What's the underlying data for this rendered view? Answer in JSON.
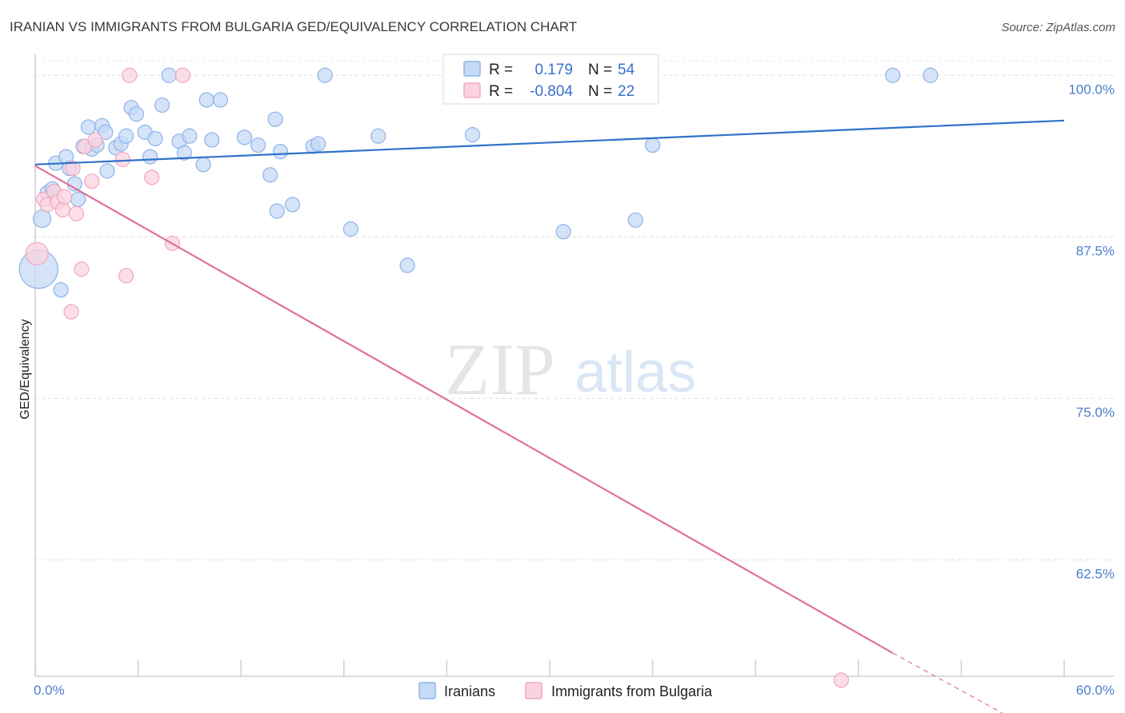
{
  "chart_data": {
    "type": "scatter",
    "title": "IRANIAN VS IMMIGRANTS FROM BULGARIA GED/EQUIVALENCY CORRELATION CHART",
    "source": "Source: ZipAtlas.com",
    "ylabel": "GED/Equivalency",
    "xlabel": "",
    "xlim": [
      0,
      60
    ],
    "ylim": [
      53.5,
      101.5
    ],
    "x_tick_labels": [
      {
        "value": 0,
        "label": "0.0%"
      },
      {
        "value": 60,
        "label": "60.0%"
      }
    ],
    "y_tick_labels": [
      {
        "value": 100,
        "label": "100.0%"
      },
      {
        "value": 87.5,
        "label": "87.5%"
      },
      {
        "value": 75,
        "label": "75.0%"
      },
      {
        "value": 62.5,
        "label": "62.5%"
      }
    ],
    "grid": true,
    "watermark": {
      "part1": "ZIP",
      "part2": "atlas"
    },
    "legend": {
      "position": "top-center",
      "rows": [
        {
          "r_label": "R =",
          "r_value": "0.179",
          "n_label": "N =",
          "n_value": "54"
        },
        {
          "r_label": "R =",
          "r_value": "-0.804",
          "n_label": "N =",
          "n_value": "22"
        }
      ]
    },
    "series": [
      {
        "name": "Iranians",
        "color": "#8db4e8",
        "fill": "#c5daf5",
        "line_color": "#2f72c8",
        "trend": {
          "x0": 0,
          "y0": 93.1,
          "x1": 60,
          "y1": 96.5
        },
        "points": [
          [
            0.2,
            85.0,
            24
          ],
          [
            0.4,
            88.9,
            11
          ],
          [
            0.7,
            90.9,
            9
          ],
          [
            1.0,
            91.2,
            9
          ],
          [
            1.2,
            93.2,
            9
          ],
          [
            1.5,
            83.4,
            9
          ],
          [
            1.8,
            93.7,
            9
          ],
          [
            2.0,
            92.8,
            9
          ],
          [
            2.3,
            91.6,
            9
          ],
          [
            2.5,
            90.4,
            9
          ],
          [
            2.8,
            94.5,
            9
          ],
          [
            3.1,
            96.0,
            9
          ],
          [
            3.3,
            94.3,
            9
          ],
          [
            3.6,
            94.6,
            9
          ],
          [
            3.9,
            96.1,
            9
          ],
          [
            4.2,
            92.6,
            9
          ],
          [
            4.1,
            95.6,
            9
          ],
          [
            4.7,
            94.4,
            9
          ],
          [
            5.0,
            94.7,
            9
          ],
          [
            5.3,
            95.3,
            9
          ],
          [
            5.6,
            97.5,
            9
          ],
          [
            5.9,
            97.0,
            9
          ],
          [
            6.4,
            95.6,
            9
          ],
          [
            6.7,
            93.7,
            9
          ],
          [
            7.0,
            95.1,
            9
          ],
          [
            7.4,
            97.7,
            9
          ],
          [
            7.8,
            100.0,
            9
          ],
          [
            8.4,
            94.9,
            9
          ],
          [
            8.7,
            94.0,
            9
          ],
          [
            9.0,
            95.3,
            9
          ],
          [
            9.8,
            93.1,
            9
          ],
          [
            10.0,
            98.1,
            9
          ],
          [
            10.3,
            95.0,
            9
          ],
          [
            10.8,
            98.1,
            9
          ],
          [
            12.2,
            95.2,
            9
          ],
          [
            13.0,
            94.6,
            9
          ],
          [
            13.7,
            92.3,
            9
          ],
          [
            14.0,
            96.6,
            9
          ],
          [
            14.1,
            89.5,
            9
          ],
          [
            14.3,
            94.1,
            9
          ],
          [
            15.0,
            90.0,
            9
          ],
          [
            16.2,
            94.5,
            9
          ],
          [
            16.5,
            94.7,
            9
          ],
          [
            16.9,
            100.0,
            9
          ],
          [
            18.4,
            88.1,
            9
          ],
          [
            20.0,
            95.3,
            9
          ],
          [
            21.7,
            85.3,
            9
          ],
          [
            25.5,
            95.4,
            9
          ],
          [
            30.8,
            87.9,
            9
          ],
          [
            35.0,
            88.8,
            9
          ],
          [
            36.0,
            94.6,
            9
          ],
          [
            50.0,
            100.0,
            9
          ],
          [
            52.2,
            100.0,
            9
          ]
        ]
      },
      {
        "name": "Immigrants from Bulgaria",
        "color": "#f0a7bf",
        "fill": "#fbd3e0",
        "line_color": "#e0709a",
        "trend": {
          "x0": 0,
          "y0": 93.0,
          "x1": 50,
          "y1": 55.3,
          "dash_to_x": 56.6,
          "dash_to_y": 50.5
        },
        "points": [
          [
            0.1,
            86.2,
            14
          ],
          [
            0.5,
            90.4,
            9
          ],
          [
            0.7,
            90.0,
            9
          ],
          [
            1.1,
            91.0,
            9
          ],
          [
            1.3,
            90.2,
            9
          ],
          [
            1.6,
            89.6,
            9
          ],
          [
            1.7,
            90.6,
            9
          ],
          [
            2.2,
            92.8,
            9
          ],
          [
            2.4,
            89.3,
            9
          ],
          [
            2.7,
            85.0,
            9
          ],
          [
            2.9,
            94.5,
            9
          ],
          [
            3.3,
            91.8,
            9
          ],
          [
            2.1,
            81.7,
            9
          ],
          [
            3.5,
            95.0,
            9
          ],
          [
            5.1,
            93.5,
            9
          ],
          [
            5.3,
            84.5,
            9
          ],
          [
            5.5,
            100.0,
            9
          ],
          [
            6.8,
            92.1,
            9
          ],
          [
            8.0,
            87.0,
            9
          ],
          [
            8.6,
            100.0,
            9
          ],
          [
            47.0,
            53.2,
            9
          ]
        ]
      }
    ]
  }
}
